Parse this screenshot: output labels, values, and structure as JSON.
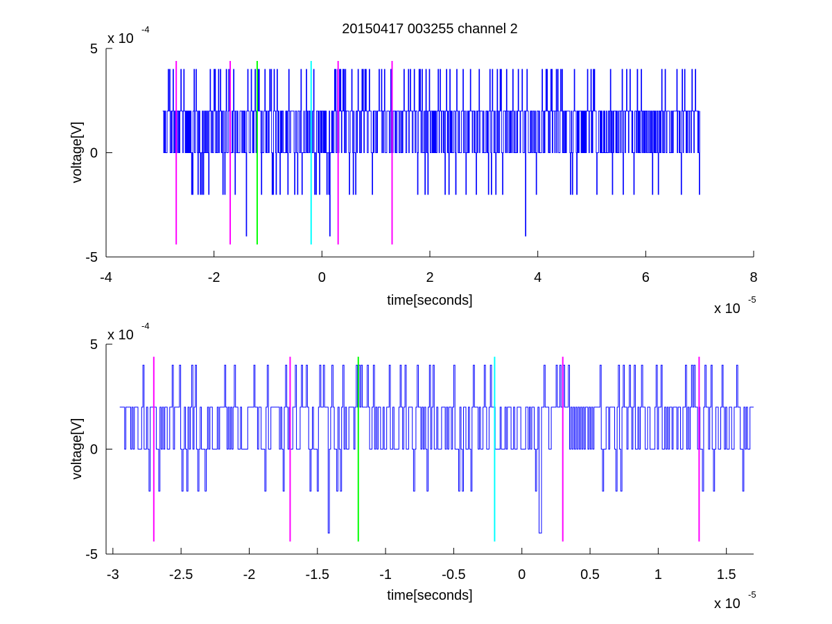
{
  "title": "20150417 003255 channel 2",
  "colors": {
    "signal": "#0000ff",
    "marker_magenta": "#ff00ff",
    "marker_green": "#00ff00",
    "marker_cyan": "#00ffff",
    "axis": "#000000",
    "background": "#ffffff"
  },
  "chart_data": [
    {
      "type": "line",
      "xlabel": "time[seconds]",
      "ylabel": "voltage[V]",
      "x_exponent": {
        "base": "x 10",
        "power": "-5"
      },
      "y_exponent": {
        "base": "x 10",
        "power": "-4"
      },
      "xlim": [
        -4,
        8
      ],
      "ylim": [
        -5,
        5
      ],
      "xticks": [
        -4,
        -2,
        0,
        2,
        4,
        6,
        8
      ],
      "xtick_labels": [
        "-4",
        "-2",
        "0",
        "2",
        "4",
        "6",
        "8"
      ],
      "yticks": [
        -5,
        0,
        5
      ],
      "ytick_labels": [
        "-5",
        "0",
        "5"
      ],
      "grid": false,
      "series": [
        {
          "color": "signal",
          "x_range": [
            -2.95,
            7.0
          ],
          "levels": [
            -2,
            0,
            2,
            4
          ],
          "description_values": "quantized noise toggling between -2, 0, 2 and 4 (x1e-4 V), rare spikes to -4",
          "spikes": [
            {
              "x": -1.4,
              "y": -4
            },
            {
              "x": 3.77,
              "y": -4
            },
            {
              "x": 0.14,
              "y": -4
            }
          ]
        }
      ],
      "markers": [
        {
          "x": -2.7,
          "color": "marker_magenta",
          "y_range": [
            -4.4,
            4.4
          ]
        },
        {
          "x": -1.7,
          "color": "marker_magenta",
          "y_range": [
            -4.4,
            4.4
          ]
        },
        {
          "x": -1.2,
          "color": "marker_green",
          "y_range": [
            -4.4,
            4.4
          ]
        },
        {
          "x": -0.2,
          "color": "marker_cyan",
          "y_range": [
            -4.4,
            4.4
          ]
        },
        {
          "x": 0.3,
          "color": "marker_magenta",
          "y_range": [
            -4.4,
            4.4
          ]
        },
        {
          "x": 1.3,
          "color": "marker_magenta",
          "y_range": [
            -4.4,
            4.4
          ]
        }
      ]
    },
    {
      "type": "line",
      "xlabel": "time[seconds]",
      "ylabel": "voltage[V]",
      "x_exponent": {
        "base": "x 10",
        "power": "-5"
      },
      "y_exponent": {
        "base": "x 10",
        "power": "-4"
      },
      "xlim": [
        -3.05,
        1.7
      ],
      "ylim": [
        -5,
        5
      ],
      "xticks": [
        -3,
        -2.5,
        -2,
        -1.5,
        -1,
        -0.5,
        0,
        0.5,
        1,
        1.5
      ],
      "xtick_labels": [
        "-3",
        "-2.5",
        "-2",
        "-1.5",
        "-1",
        "-0.5",
        "0",
        "0.5",
        "1",
        "1.5"
      ],
      "yticks": [
        -5,
        0,
        5
      ],
      "ytick_labels": [
        "-5",
        "0",
        "5"
      ],
      "grid": false,
      "series": [
        {
          "color": "signal",
          "x_range": [
            -2.95,
            1.7
          ],
          "levels": [
            -2,
            0,
            2,
            4
          ],
          "description_values": "zoomed view of same quantized noise signal",
          "spikes": [
            {
              "x": -1.42,
              "y": -4
            },
            {
              "x": 0.13,
              "y": -4
            }
          ]
        }
      ],
      "markers": [
        {
          "x": -2.7,
          "color": "marker_magenta",
          "y_range": [
            -4.4,
            4.4
          ]
        },
        {
          "x": -1.7,
          "color": "marker_magenta",
          "y_range": [
            -4.4,
            4.4
          ]
        },
        {
          "x": -1.2,
          "color": "marker_green",
          "y_range": [
            -4.4,
            4.4
          ]
        },
        {
          "x": -0.2,
          "color": "marker_cyan",
          "y_range": [
            -4.4,
            4.4
          ]
        },
        {
          "x": 0.3,
          "color": "marker_magenta",
          "y_range": [
            -4.4,
            4.4
          ]
        },
        {
          "x": 1.3,
          "color": "marker_magenta",
          "y_range": [
            -4.4,
            4.4
          ]
        }
      ]
    }
  ]
}
